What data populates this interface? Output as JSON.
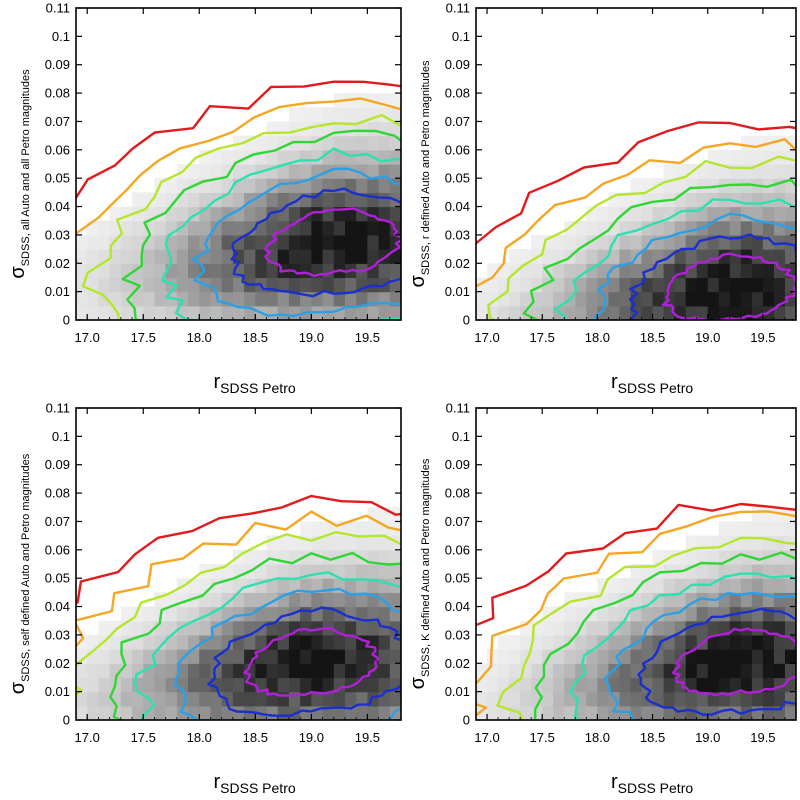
{
  "chart_data": [
    {
      "type": "heatmap",
      "title": "",
      "xlabel_main": "r",
      "xlabel_sub": "SDSS Petro",
      "ylabel_main": "σ",
      "ylabel_sub": "SDSS, all Auto and all Petro magnitudes",
      "xlim": [
        16.9,
        19.8
      ],
      "ylim": [
        0,
        0.11
      ],
      "xticks": [
        "17.0",
        "17.5",
        "18.0",
        "18.5",
        "19.0",
        "19.5"
      ],
      "yticks": [
        "0",
        "0.01",
        "0.02",
        "0.03",
        "0.04",
        "0.05",
        "0.06",
        "0.07",
        "0.08",
        "0.09",
        "0.1",
        "0.11"
      ],
      "density_center": {
        "x": 19.2,
        "y": 0.028
      },
      "contour_colors": [
        "#e31a1c",
        "#f5a623",
        "#b5e62c",
        "#2fd635",
        "#2de0b0",
        "#2aa0e6",
        "#1a2fd0",
        "#b020d8"
      ]
    },
    {
      "type": "heatmap",
      "title": "",
      "xlabel_main": "r",
      "xlabel_sub": "SDSS Petro",
      "ylabel_main": "σ",
      "ylabel_sub": "SDSS, r defined Auto and Petro magnitudes",
      "xlim": [
        16.9,
        19.8
      ],
      "ylim": [
        0,
        0.11
      ],
      "xticks": [
        "17.0",
        "17.5",
        "18.0",
        "18.5",
        "19.0",
        "19.5"
      ],
      "yticks": [
        "0",
        "0.01",
        "0.02",
        "0.03",
        "0.04",
        "0.05",
        "0.06",
        "0.07",
        "0.08",
        "0.09",
        "0.1",
        "0.11"
      ],
      "density_center": {
        "x": 19.2,
        "y": 0.012
      },
      "contour_colors": [
        "#e31a1c",
        "#f5a623",
        "#b5e62c",
        "#2fd635",
        "#2de0b0",
        "#2aa0e6",
        "#1a2fd0",
        "#b020d8"
      ]
    },
    {
      "type": "heatmap",
      "title": "",
      "xlabel_main": "r",
      "xlabel_sub": "SDSS Petro",
      "ylabel_main": "σ",
      "ylabel_sub": "SDSS, self defined Auto and Petro magnitudes",
      "xlim": [
        16.9,
        19.8
      ],
      "ylim": [
        0,
        0.11
      ],
      "xticks": [
        "17.0",
        "17.5",
        "18.0",
        "18.5",
        "19.0",
        "19.5"
      ],
      "yticks": [
        "0",
        "0.01",
        "0.02",
        "0.03",
        "0.04",
        "0.05",
        "0.06",
        "0.07",
        "0.08",
        "0.09",
        "0.1",
        "0.11"
      ],
      "density_center": {
        "x": 19.0,
        "y": 0.021
      },
      "contour_colors": [
        "#e31a1c",
        "#f5a623",
        "#b5e62c",
        "#2fd635",
        "#2de0b0",
        "#2aa0e6",
        "#1a2fd0",
        "#b020d8"
      ]
    },
    {
      "type": "heatmap",
      "title": "",
      "xlabel_main": "r",
      "xlabel_sub": "SDSS Petro",
      "ylabel_main": "σ",
      "ylabel_sub": "SDSS, K defined Auto and Petro magnitudes",
      "xlim": [
        16.9,
        19.8
      ],
      "ylim": [
        0,
        0.11
      ],
      "xticks": [
        "17.0",
        "17.5",
        "18.0",
        "18.5",
        "19.0",
        "19.5"
      ],
      "yticks": [
        "0",
        "0.01",
        "0.02",
        "0.03",
        "0.04",
        "0.05",
        "0.06",
        "0.07",
        "0.08",
        "0.09",
        "0.1",
        "0.11"
      ],
      "density_center": {
        "x": 19.3,
        "y": 0.021
      },
      "contour_colors": [
        "#e31a1c",
        "#f5a623",
        "#b5e62c",
        "#2fd635",
        "#2de0b0",
        "#2aa0e6",
        "#1a2fd0",
        "#b020d8"
      ]
    }
  ]
}
